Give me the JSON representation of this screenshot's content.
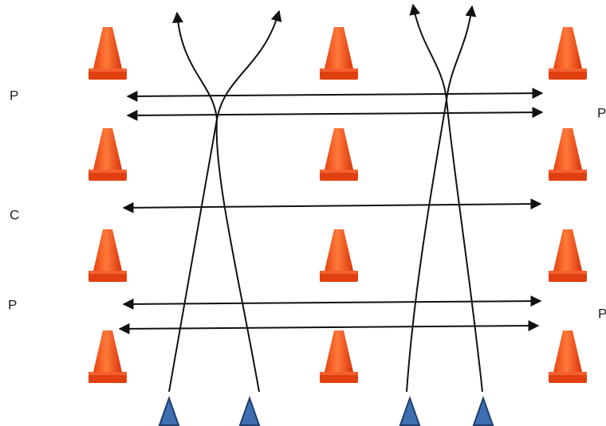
{
  "labels": {
    "left": [
      "P",
      "C",
      "P"
    ],
    "right": [
      "P",
      "P"
    ]
  }
}
